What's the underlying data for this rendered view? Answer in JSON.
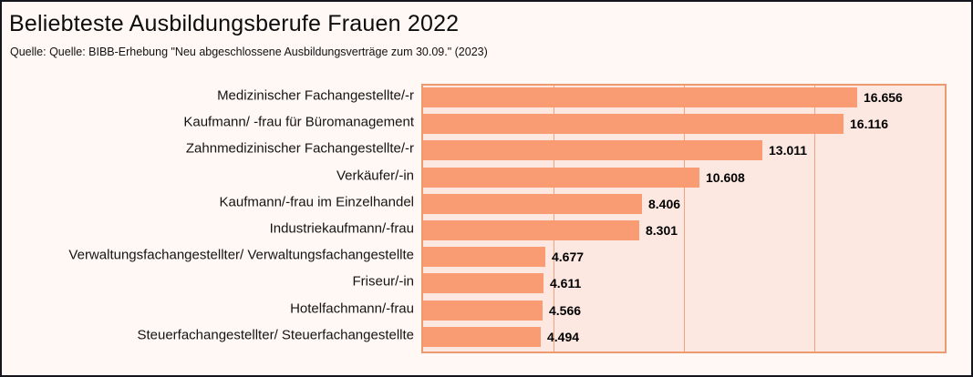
{
  "page": {
    "title": "Beliebteste Ausbildungsberufe Frauen 2022",
    "subtitle": "Quelle: Quelle: BIBB-Erhebung \"Neu abgeschlossene Ausbildungsverträge zum 30.09.\" (2023)"
  },
  "colors": {
    "page_bg": "#fff8f4",
    "page_border": "#15151e",
    "plot_bg": "#fce8e0",
    "plot_border": "#ee9a6f",
    "gridline": "#f2a47e",
    "bar": "#f99c74",
    "text": "#111111"
  },
  "chart_data": {
    "type": "bar",
    "orientation": "horizontal",
    "title": "Beliebteste Ausbildungsberufe Frauen 2022",
    "source": "Quelle: BIBB-Erhebung \"Neu abgeschlossene Ausbildungsverträge zum 30.09.\" (2023)",
    "categories": [
      "Medizinischer Fachangestellte/-r",
      "Kaufmann/ -frau für Büromanagement",
      "Zahnmedizinischer Fachangestellte/-r",
      "Verkäufer/-in",
      "Kaufmann/-frau im Einzelhandel",
      "Industriekaufmann/-frau",
      "Verwaltungsfachangestellter/ Verwaltungsfachangestellte",
      "Friseur/-in",
      "Hotelfachmann/-frau",
      "Steuerfachangestellter/ Steuerfachangestellte"
    ],
    "values": [
      16656,
      16116,
      13011,
      10608,
      8406,
      8301,
      4677,
      4611,
      4566,
      4494
    ],
    "value_labels": [
      "16.656",
      "16.116",
      "13.011",
      "10.608",
      "8.406",
      "8.301",
      "4.677",
      "4.611",
      "4.566",
      "4.494"
    ],
    "xlim": [
      0,
      20000
    ],
    "gridlines_x": [
      5000,
      10000,
      15000
    ],
    "x_tick_labels_visible": false,
    "legend": false,
    "grid": true
  }
}
